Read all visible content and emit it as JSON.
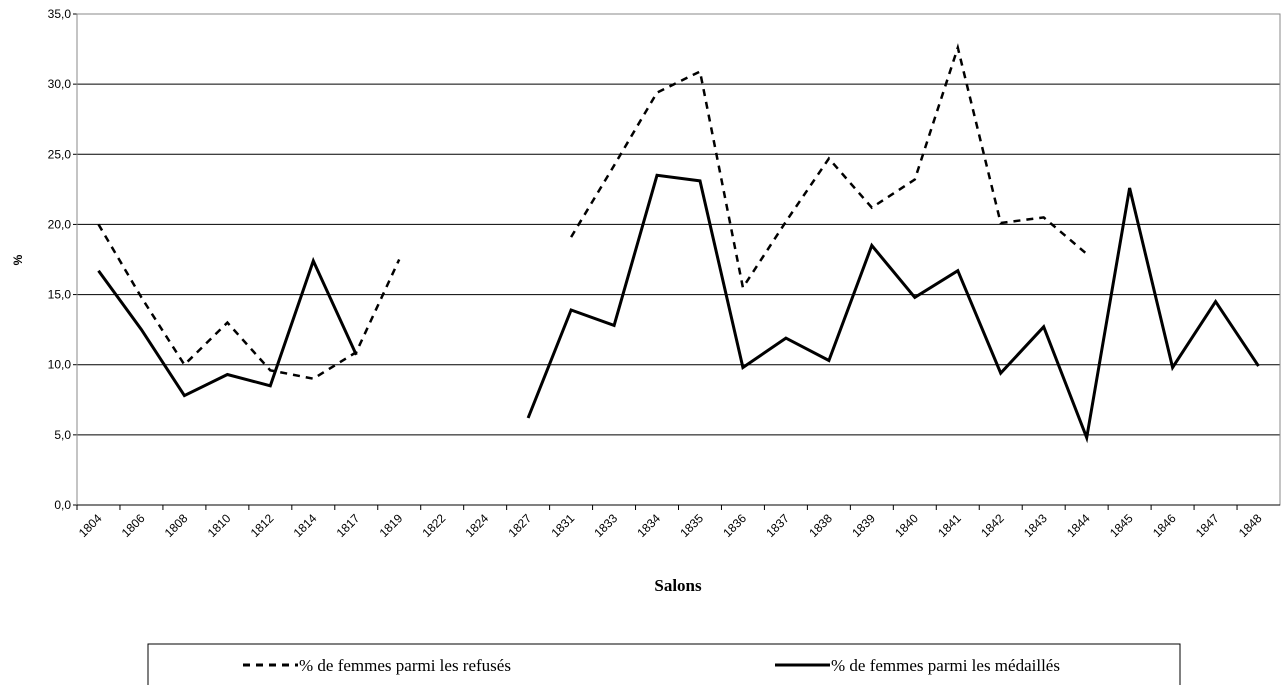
{
  "chart_data": {
    "type": "line",
    "x_label": "Salons",
    "y_label": "%",
    "categories": [
      "1804",
      "1806",
      "1808",
      "1810",
      "1812",
      "1814",
      "1817",
      "1819",
      "1822",
      "1824",
      "1827",
      "1831",
      "1833",
      "1834",
      "1835",
      "1836",
      "1837",
      "1838",
      "1839",
      "1840",
      "1841",
      "1842",
      "1843",
      "1844",
      "1845",
      "1846",
      "1847",
      "1848"
    ],
    "series": [
      {
        "name": "% de femmes parmi les refusés",
        "color": "#000000",
        "dash": true,
        "values": [
          20.0,
          14.8,
          10.0,
          13.0,
          9.6,
          9.0,
          10.9,
          17.5,
          null,
          null,
          null,
          19.1,
          24.2,
          29.4,
          30.9,
          15.5,
          20.2,
          24.7,
          21.2,
          23.2,
          32.6,
          20.1,
          20.5,
          17.9,
          null,
          null,
          null,
          null
        ]
      },
      {
        "name": "% de femmes parmi les médaillés",
        "color": "#000000",
        "dash": false,
        "values": [
          16.7,
          12.5,
          7.8,
          9.3,
          8.5,
          17.4,
          10.7,
          null,
          null,
          null,
          6.2,
          13.9,
          12.8,
          23.5,
          23.1,
          9.8,
          11.9,
          10.3,
          18.5,
          14.8,
          16.7,
          9.4,
          12.7,
          4.8,
          22.6,
          9.8,
          14.5,
          9.9
        ]
      }
    ],
    "ylim": [
      0,
      35
    ],
    "yticks": [
      {
        "value": 0,
        "label": "0,0"
      },
      {
        "value": 5,
        "label": "5,0"
      },
      {
        "value": 10,
        "label": "10,0"
      },
      {
        "value": 15,
        "label": "15,0"
      },
      {
        "value": 20,
        "label": "20,0"
      },
      {
        "value": 25,
        "label": "25,0"
      },
      {
        "value": 30,
        "label": "30,0"
      },
      {
        "value": 35,
        "label": "35,0"
      }
    ],
    "grid": true,
    "legend": "bottom"
  }
}
